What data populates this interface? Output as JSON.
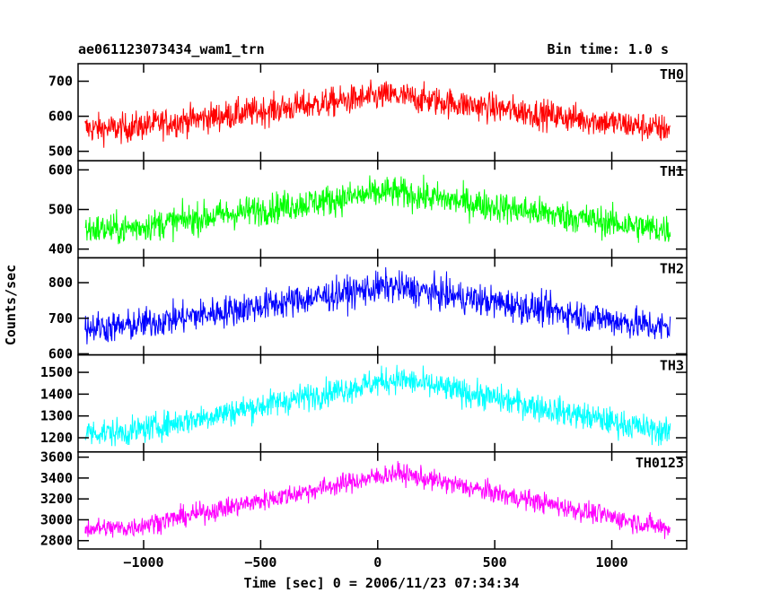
{
  "header": {
    "title": "ae061123073434_wam1_trn",
    "bin_time": "Bin time: 1.0 s"
  },
  "axes": {
    "xlabel": "Time [sec] 0 = 2006/11/23 07:34:34",
    "ylabel": "Counts/sec"
  },
  "chart_data": {
    "type": "line",
    "title": "ae061123073434_wam1_trn",
    "subtitle": "Bin time: 1.0 s",
    "xlabel": "Time [sec] 0 = 2006/11/23 07:34:34",
    "ylabel": "Counts/sec",
    "xlim": [
      -1280,
      1320
    ],
    "x_ticks": [
      -1000,
      -500,
      0,
      500,
      1000
    ],
    "x_tick_labels": [
      "−1000",
      "−500",
      "0",
      "500",
      "1000"
    ],
    "data_x_range": [
      -1250,
      1250
    ],
    "bin_time_s": 1.0,
    "grid": false,
    "legend": "none",
    "panels": [
      {
        "name": "TH0",
        "color": "#ff0000",
        "ylim": [
          473,
          750
        ],
        "y_ticks": [
          500,
          600,
          700
        ],
        "baseline": 565,
        "peak": 660,
        "peak_x": 50,
        "noise": 30
      },
      {
        "name": "TH1",
        "color": "#00ff00",
        "ylim": [
          378,
          623
        ],
        "y_ticks": [
          400,
          500,
          600
        ],
        "baseline": 450,
        "peak": 545,
        "peak_x": 50,
        "noise": 28
      },
      {
        "name": "TH2",
        "color": "#0000ff",
        "ylim": [
          597,
          870
        ],
        "y_ticks": [
          600,
          700,
          800
        ],
        "baseline": 675,
        "peak": 790,
        "peak_x": 50,
        "noise": 32
      },
      {
        "name": "TH3",
        "color": "#00ffff",
        "ylim": [
          1135,
          1580
        ],
        "y_ticks": [
          1200,
          1300,
          1400,
          1500
        ],
        "baseline": 1225,
        "peak": 1470,
        "peak_x": 80,
        "noise": 45
      },
      {
        "name": "TH0123",
        "color": "#ff00ff",
        "ylim": [
          2720,
          3650
        ],
        "y_ticks": [
          2800,
          3000,
          3200,
          3400,
          3600
        ],
        "baseline": 2920,
        "peak": 3450,
        "peak_x": 80,
        "noise": 70
      }
    ]
  }
}
